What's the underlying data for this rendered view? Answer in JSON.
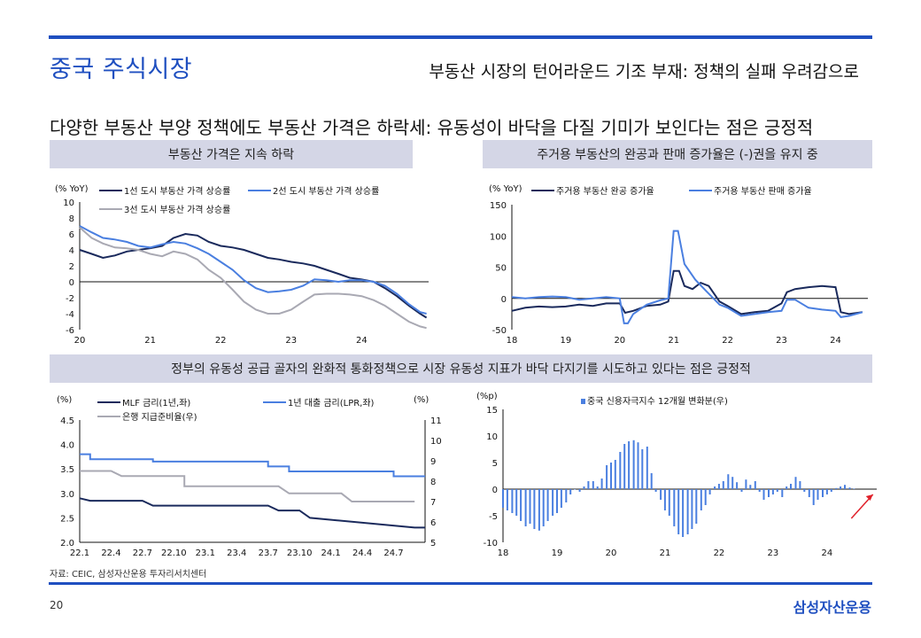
{
  "header": {
    "title": "중국 주식시장",
    "subtitle": "부동산 시장의 턴어라운드 기조 부재: 정책의 실패 우려감으로",
    "headline": "다양한 부동산 부양 정책에도 부동산 가격은 하락세: 유동성이 바닥을 다질 기미가 보인다는 점은 긍정적"
  },
  "bands": {
    "chart1": "부동산 가격은 지속 하락",
    "chart2": "주거용 부동산의 완공과 판매 증가율은 (-)권을 유지 중",
    "bottom": "정부의 유동성 공급 골자의 완화적 통화정책으로 시장 유동성 지표가 바닥 다지기를 시도하고 있다는 점은 긍정적"
  },
  "footer": {
    "source": "자료: CEIC, 삼성자산운용 투자리서치센터",
    "page": "20",
    "brand": "삼성자산운용"
  },
  "colors": {
    "accent": "#1f4fc0",
    "navy": "#1a2a5c",
    "blue": "#4a7fe0",
    "gray": "#a9a9b3",
    "arrow": "#e0202a"
  },
  "chart_data": [
    {
      "type": "line",
      "unit": "(% YoY)",
      "ylim": [
        -6,
        10
      ],
      "yticks": [
        "10",
        "8",
        "6",
        "4",
        "2",
        "0",
        "-2",
        "-4",
        "-6"
      ],
      "xlim": [
        2020.0,
        2024.95
      ],
      "xticks": [
        "20",
        "21",
        "22",
        "23",
        "24"
      ],
      "series": [
        {
          "name": "1선 도시 부동산 가격 상승률",
          "color": "#1a2a5c",
          "x": [
            2020.0,
            2020.17,
            2020.33,
            2020.5,
            2020.67,
            2020.83,
            2021.0,
            2021.17,
            2021.33,
            2021.5,
            2021.67,
            2021.83,
            2022.0,
            2022.17,
            2022.33,
            2022.5,
            2022.67,
            2022.83,
            2023.0,
            2023.17,
            2023.33,
            2023.5,
            2023.67,
            2023.83,
            2024.0,
            2024.17,
            2024.33,
            2024.5,
            2024.67,
            2024.83,
            2024.92
          ],
          "y": [
            4.0,
            3.5,
            3.0,
            3.3,
            3.8,
            4.0,
            4.2,
            4.5,
            5.5,
            6.0,
            5.8,
            5.0,
            4.5,
            4.3,
            4.0,
            3.5,
            3.0,
            2.8,
            2.5,
            2.3,
            2.0,
            1.5,
            1.0,
            0.5,
            0.3,
            0.0,
            -0.8,
            -1.8,
            -3.0,
            -4.0,
            -4.5
          ]
        },
        {
          "name": "2선 도시 부동산 가격 상승률",
          "color": "#4a7fe0",
          "x": [
            2020.0,
            2020.17,
            2020.33,
            2020.5,
            2020.67,
            2020.83,
            2021.0,
            2021.17,
            2021.33,
            2021.5,
            2021.67,
            2021.83,
            2022.0,
            2022.17,
            2022.33,
            2022.5,
            2022.67,
            2022.83,
            2023.0,
            2023.17,
            2023.33,
            2023.5,
            2023.67,
            2023.83,
            2024.0,
            2024.17,
            2024.33,
            2024.5,
            2024.67,
            2024.83,
            2024.92
          ],
          "y": [
            7.0,
            6.2,
            5.5,
            5.3,
            5.0,
            4.5,
            4.3,
            4.7,
            5.0,
            4.8,
            4.2,
            3.5,
            2.5,
            1.5,
            0.2,
            -0.8,
            -1.3,
            -1.2,
            -1.0,
            -0.5,
            0.3,
            0.2,
            0.0,
            0.2,
            0.2,
            0.0,
            -0.5,
            -1.5,
            -2.8,
            -3.8,
            -4.0
          ]
        },
        {
          "name": "3선 도시 부동산 가격 상승률",
          "color": "#a9a9b3",
          "x": [
            2020.0,
            2020.17,
            2020.33,
            2020.5,
            2020.67,
            2020.83,
            2021.0,
            2021.17,
            2021.33,
            2021.5,
            2021.67,
            2021.83,
            2022.0,
            2022.17,
            2022.33,
            2022.5,
            2022.67,
            2022.83,
            2023.0,
            2023.17,
            2023.33,
            2023.5,
            2023.67,
            2023.83,
            2024.0,
            2024.17,
            2024.33,
            2024.5,
            2024.67,
            2024.83,
            2024.92
          ],
          "y": [
            6.8,
            5.5,
            4.8,
            4.3,
            4.2,
            4.0,
            3.5,
            3.2,
            3.8,
            3.5,
            2.8,
            1.5,
            0.5,
            -1.0,
            -2.5,
            -3.5,
            -4.0,
            -4.0,
            -3.5,
            -2.5,
            -1.6,
            -1.5,
            -1.5,
            -1.6,
            -1.8,
            -2.3,
            -3.0,
            -4.0,
            -5.0,
            -5.6,
            -5.8
          ]
        }
      ]
    },
    {
      "type": "line",
      "unit": "(% YoY)",
      "ylim": [
        -50,
        150
      ],
      "yticks": [
        "150",
        "100",
        "50",
        "0",
        "-50"
      ],
      "xlim": [
        2018.0,
        2024.6
      ],
      "xticks": [
        "18",
        "19",
        "20",
        "21",
        "22",
        "23",
        "24"
      ],
      "series": [
        {
          "name": "주거용 부동산 완공 증가율",
          "color": "#1a2a5c",
          "x": [
            2018.0,
            2018.25,
            2018.5,
            2018.75,
            2019.0,
            2019.25,
            2019.5,
            2019.75,
            2020.0,
            2020.1,
            2020.25,
            2020.5,
            2020.75,
            2020.9,
            2021.0,
            2021.1,
            2021.2,
            2021.35,
            2021.5,
            2021.65,
            2021.85,
            2022.0,
            2022.25,
            2022.5,
            2022.75,
            2023.0,
            2023.1,
            2023.25,
            2023.5,
            2023.75,
            2024.0,
            2024.1,
            2024.25,
            2024.5
          ],
          "y": [
            -20,
            -15,
            -13,
            -14,
            -13,
            -10,
            -12,
            -8,
            -8,
            -23,
            -20,
            -12,
            -10,
            -5,
            44,
            44,
            20,
            15,
            25,
            20,
            -5,
            -12,
            -25,
            -22,
            -20,
            -8,
            10,
            15,
            18,
            20,
            18,
            -22,
            -25,
            -22
          ]
        },
        {
          "name": "주거용 부동산 판매 증가율",
          "color": "#4a7fe0",
          "x": [
            2018.0,
            2018.25,
            2018.5,
            2018.75,
            2019.0,
            2019.25,
            2019.5,
            2019.75,
            2020.0,
            2020.08,
            2020.15,
            2020.25,
            2020.5,
            2020.75,
            2020.9,
            2021.0,
            2021.08,
            2021.2,
            2021.4,
            2021.6,
            2021.85,
            2022.0,
            2022.25,
            2022.5,
            2022.75,
            2023.0,
            2023.1,
            2023.25,
            2023.5,
            2023.75,
            2024.0,
            2024.1,
            2024.25,
            2024.5
          ],
          "y": [
            2,
            0,
            2,
            3,
            2,
            -2,
            0,
            2,
            0,
            -40,
            -40,
            -25,
            -10,
            -3,
            0,
            108,
            108,
            55,
            30,
            12,
            -10,
            -15,
            -28,
            -25,
            -22,
            -20,
            -2,
            -2,
            -15,
            -18,
            -20,
            -30,
            -28,
            -22
          ]
        }
      ]
    },
    {
      "type": "line",
      "unit_left": "(%)",
      "unit_right": "(%)",
      "ylim_left": [
        2.0,
        4.5
      ],
      "yticks_left": [
        "4.5",
        "4.0",
        "3.5",
        "3.0",
        "2.5",
        "2.0"
      ],
      "ylim_right": [
        5,
        11
      ],
      "yticks_right": [
        "11",
        "10",
        "9",
        "8",
        "7",
        "6",
        "5"
      ],
      "xlim": [
        0,
        33
      ],
      "xticks": [
        "22.1",
        "22.4",
        "22.7",
        "22.10",
        "23.1",
        "23.4",
        "23.7",
        "23.10",
        "24.1",
        "24.4",
        "24.7"
      ],
      "series": [
        {
          "name": "MLF 금리(1년,좌)",
          "color": "#1a2a5c",
          "axis": "left",
          "x": [
            0,
            1,
            1,
            6,
            7,
            7,
            18,
            19,
            19,
            21,
            22,
            22,
            32,
            33
          ],
          "y": [
            2.9,
            2.85,
            2.85,
            2.85,
            2.75,
            2.75,
            2.75,
            2.65,
            2.65,
            2.65,
            2.5,
            2.5,
            2.3,
            2.3
          ]
        },
        {
          "name": "1년 대출 금리(LPR,좌)",
          "color": "#4a7fe0",
          "axis": "left",
          "x": [
            0,
            1,
            1,
            7,
            7,
            18,
            18,
            20,
            20,
            30,
            30,
            33
          ],
          "y": [
            3.8,
            3.8,
            3.7,
            3.7,
            3.65,
            3.65,
            3.55,
            3.55,
            3.45,
            3.45,
            3.35,
            3.35
          ]
        },
        {
          "name": "은행 지급준비율(우)",
          "color": "#a9a9b3",
          "axis": "right",
          "x": [
            0,
            3,
            4,
            10,
            10,
            19,
            20,
            25,
            26,
            32
          ],
          "y": [
            8.5,
            8.5,
            8.25,
            8.25,
            7.75,
            7.75,
            7.4,
            7.4,
            7.0,
            7.0
          ]
        }
      ]
    },
    {
      "type": "bar",
      "unit": "(%p)",
      "ylim": [
        -10,
        15
      ],
      "yticks": [
        "15",
        "10",
        "5",
        "0",
        "-5",
        "-10"
      ],
      "xlim": [
        2018.0,
        2024.92
      ],
      "xticks": [
        "18",
        "19",
        "20",
        "21",
        "22",
        "23",
        "24"
      ],
      "series": [
        {
          "name": "중국 신용자극지수 12개월 변화분(우)",
          "color": "#4a7fe0",
          "x": [
            2018.0,
            2018.08,
            2018.17,
            2018.25,
            2018.33,
            2018.42,
            2018.5,
            2018.58,
            2018.67,
            2018.75,
            2018.83,
            2018.92,
            2019.0,
            2019.08,
            2019.17,
            2019.25,
            2019.33,
            2019.42,
            2019.5,
            2019.58,
            2019.67,
            2019.75,
            2019.83,
            2019.92,
            2020.0,
            2020.08,
            2020.17,
            2020.25,
            2020.33,
            2020.42,
            2020.5,
            2020.58,
            2020.67,
            2020.75,
            2020.83,
            2020.92,
            2021.0,
            2021.08,
            2021.17,
            2021.25,
            2021.33,
            2021.42,
            2021.5,
            2021.58,
            2021.67,
            2021.75,
            2021.83,
            2021.92,
            2022.0,
            2022.08,
            2022.17,
            2022.25,
            2022.33,
            2022.42,
            2022.5,
            2022.58,
            2022.67,
            2022.75,
            2022.83,
            2022.92,
            2023.0,
            2023.08,
            2023.17,
            2023.25,
            2023.33,
            2023.42,
            2023.5,
            2023.58,
            2023.67,
            2023.75,
            2023.83,
            2023.92,
            2024.0,
            2024.08,
            2024.17,
            2024.25,
            2024.33,
            2024.42,
            2024.5
          ],
          "y": [
            -3.5,
            -4.0,
            -4.5,
            -5.0,
            -6.0,
            -7.0,
            -6.5,
            -7.5,
            -7.8,
            -7.0,
            -6.0,
            -5.0,
            -4.5,
            -3.5,
            -2.5,
            -1.0,
            0.0,
            -0.5,
            0.5,
            1.5,
            1.5,
            0.5,
            2.0,
            4.5,
            5.0,
            5.5,
            7.0,
            8.5,
            9.0,
            9.2,
            8.8,
            7.5,
            8.0,
            3.0,
            -0.5,
            -2.0,
            -4.0,
            -5.0,
            -7.0,
            -8.5,
            -9.0,
            -8.5,
            -7.5,
            -6.5,
            -4.0,
            -3.0,
            -1.0,
            0.5,
            1.0,
            1.5,
            2.8,
            2.3,
            1.3,
            -0.5,
            1.8,
            0.8,
            1.5,
            -0.5,
            -2.0,
            -1.5,
            -1.0,
            -0.5,
            -1.5,
            0.5,
            1.0,
            2.3,
            1.5,
            -0.5,
            -1.5,
            -3.0,
            -2.0,
            -1.5,
            -1.0,
            -0.5,
            0.2,
            0.5,
            0.8,
            0.3,
            0.1
          ]
        }
      ]
    }
  ]
}
